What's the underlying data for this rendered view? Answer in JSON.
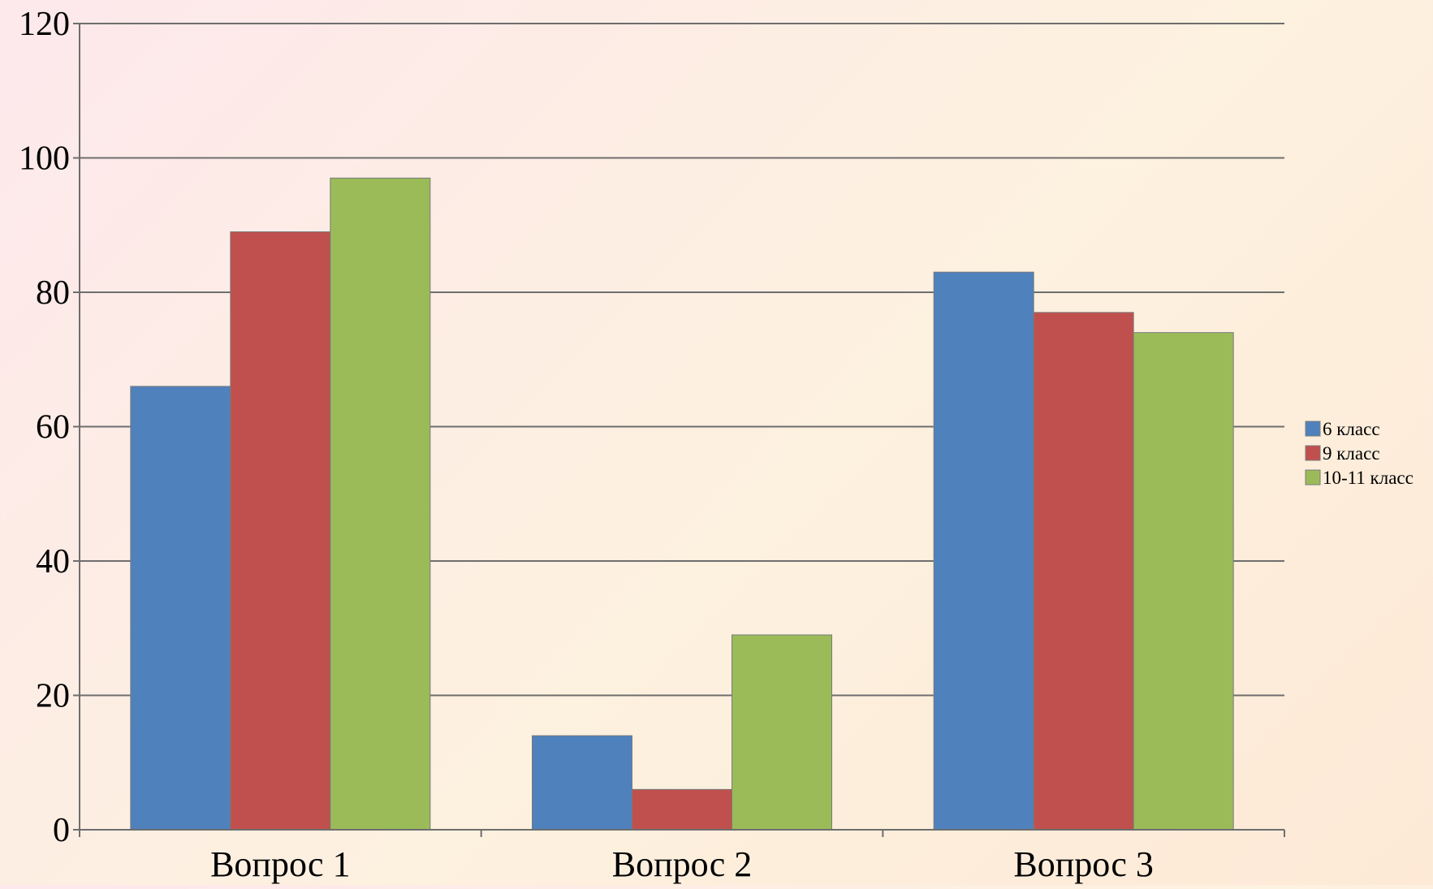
{
  "chart_data": {
    "type": "bar",
    "categories": [
      "Вопрос 1",
      "Вопрос 2",
      "Вопрос 3"
    ],
    "series": [
      {
        "name": "6 класс",
        "color": "#4f81bd",
        "values": [
          66,
          14,
          83
        ]
      },
      {
        "name": "9 класс",
        "color": "#c0504d",
        "values": [
          89,
          6,
          77
        ]
      },
      {
        "name": "10-11 класс",
        "color": "#9bbb59",
        "values": [
          97,
          29,
          74
        ]
      }
    ],
    "ylim": [
      0,
      120
    ],
    "yticks": [
      0,
      20,
      40,
      60,
      80,
      100,
      120
    ],
    "grid": true,
    "legend_position": "right",
    "title": "",
    "xlabel": "",
    "ylabel": ""
  }
}
